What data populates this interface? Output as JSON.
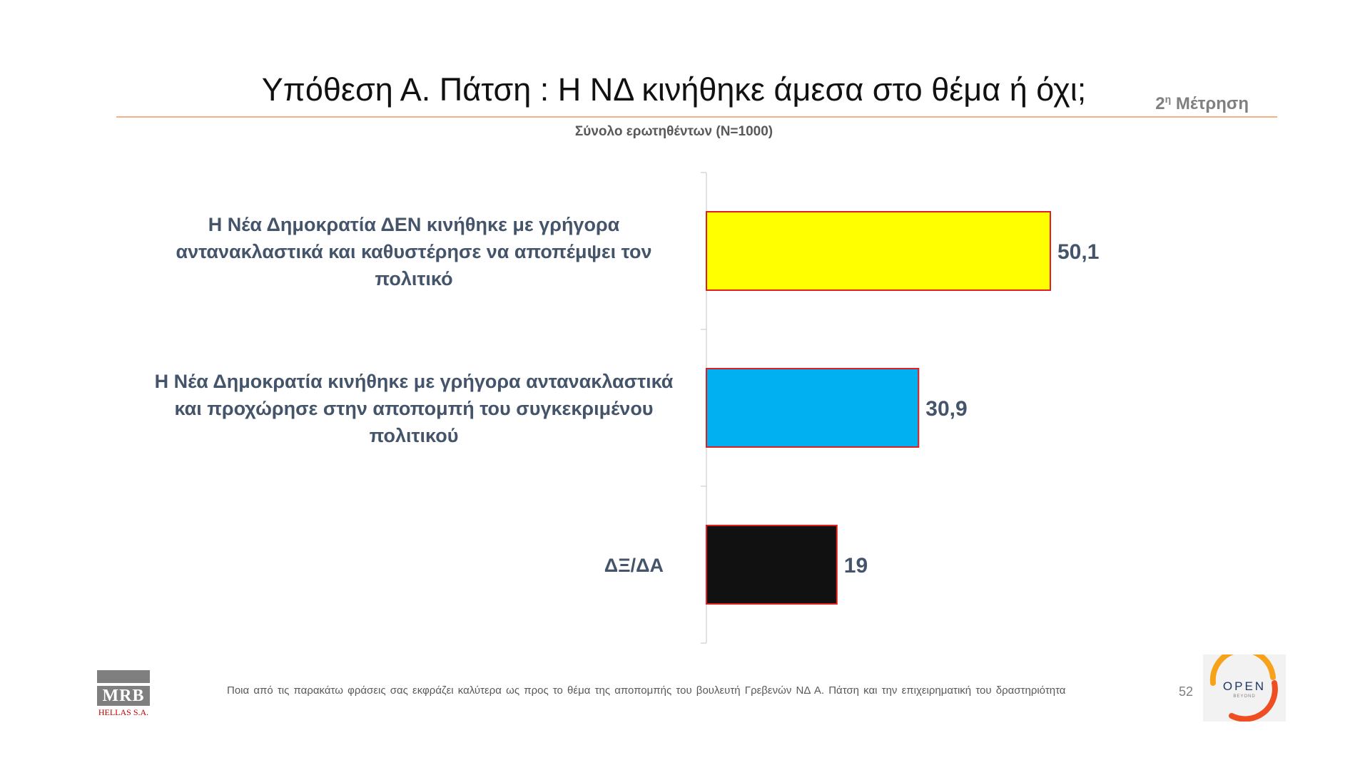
{
  "header": {
    "title": "Υπόθεση Α. Πάτση : Η ΝΔ κινήθηκε άμεσα στο θέμα ή όχι;",
    "measurement_number": "2",
    "measurement_sup": "η",
    "measurement_word": "Μέτρηση",
    "subtitle": "Σύνολο ερωτηθέντων (N=1000)"
  },
  "chart_data": {
    "type": "bar",
    "orientation": "horizontal",
    "categories": [
      [
        "Η Νέα Δημοκρατία ΔΕΝ κινήθηκε με γρήγορα",
        "αντανακλαστικά και καθυστέρησε να αποπέμψει τον",
        "πολιτικό"
      ],
      [
        "Η Νέα Δημοκρατία κινήθηκε με γρήγορα αντανακλαστικά",
        "και προχώρησε στην αποπομπή του συγκεκριμένου",
        "πολιτικού"
      ],
      [
        "ΔΞ/ΔΑ"
      ]
    ],
    "values": [
      50.1,
      30.9,
      19
    ],
    "value_labels": [
      "50,1",
      "30,9",
      "19"
    ],
    "colors": [
      "#ffff00",
      "#00b0f0",
      "#111111"
    ],
    "border_color": "#e02020",
    "xlim": [
      0,
      100
    ],
    "grid": false,
    "legend": "none"
  },
  "footer": {
    "question": "Ποια από τις παρακάτω φράσεις σας εκφράζει καλύτερα ως προς το θέμα της αποπομπής του βουλευτή Γρεβενών ΝΔ Α. Πάτση και την επιχειρηματική του δραστηριότητα",
    "page_number": "52",
    "logo_left_main": "MRB",
    "logo_left_sub": "HELLAS S.A.",
    "logo_right_main": "OPEN",
    "logo_right_sub": "BEYOND"
  }
}
